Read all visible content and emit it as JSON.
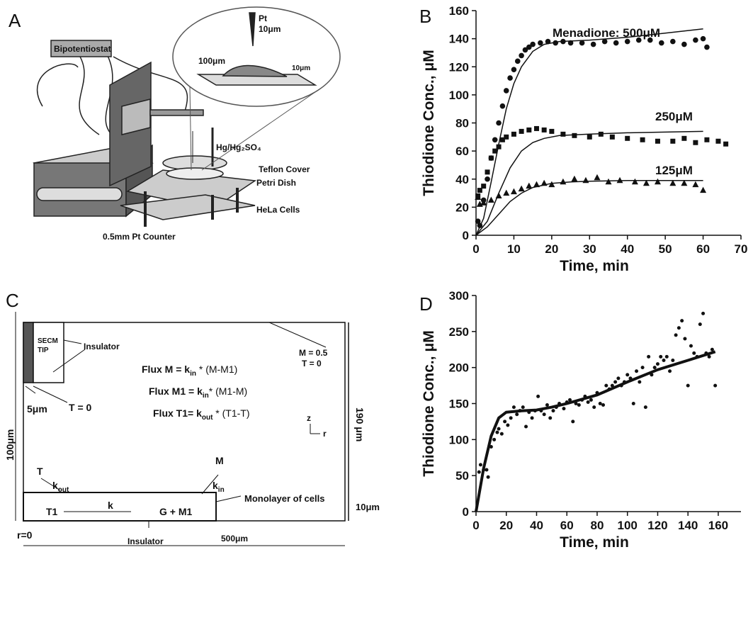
{
  "panel_labels": [
    "A",
    "B",
    "C",
    "D"
  ],
  "diagram_a": {
    "bipotentiostat": "Bipotentiostat",
    "tip": "Pt",
    "tip_size": "10μm",
    "gap": "100μm",
    "cell_height": "10μm",
    "reference": "Hg/Hg₂SO₄",
    "cover": "Teflon Cover",
    "dish": "Petri Dish",
    "cells": "HeLa Cells",
    "counter": "0.5mm Pt  Counter"
  },
  "diagram_c": {
    "tip": "SECM",
    "tip2": "TIP",
    "tip_insulator": "Insulator",
    "boundary_m": "M = 0.5",
    "boundary_t": "T = 0",
    "tip_radius": "5μm",
    "tip_t": "T = 0",
    "height": "100μm",
    "total_height": "190 μm",
    "axis_z": "z",
    "axis_r": "r",
    "equations": [
      {
        "lhs": "Flux M = k",
        "sub": "in",
        "rhs": " * (M-M1)"
      },
      {
        "lhs": "Flux M1 = k",
        "sub": "in",
        "rhs": "* (M1-M)"
      },
      {
        "lhs": "Flux T1= k",
        "sub": "out",
        "rhs": " * (T1-T)"
      }
    ],
    "species_t": "T",
    "k_out": "k",
    "k_out_sub": "out",
    "species_m": "M",
    "k_in": "k",
    "k_in_sub": "in",
    "t1": "T1",
    "k": "k",
    "reaction": "G + M1",
    "monolayer": "Monolayer of cells",
    "layer": "10μm",
    "origin": "r=0",
    "bottom_insulator": "Insulator",
    "width": "500μm"
  },
  "chart_data": [
    {
      "type": "scatter",
      "xlabel": "Time,  min",
      "ylabel": "Thiodione Conc., μM",
      "xlim": [
        0,
        70
      ],
      "xticks": [
        0,
        10,
        20,
        30,
        40,
        50,
        60,
        70
      ],
      "ylim": [
        0,
        160
      ],
      "yticks": [
        0,
        20,
        40,
        60,
        80,
        100,
        120,
        140,
        160
      ],
      "annotations": [
        "Menadione: 500μM",
        "250μM",
        "125μM"
      ],
      "series": [
        {
          "mode": "markers",
          "marker": "circle",
          "color": "#111111",
          "x": [
            0.5,
            1,
            2,
            3,
            4,
            5,
            6,
            7,
            8,
            9,
            10,
            11,
            12,
            13,
            14,
            15,
            17,
            19,
            21,
            23,
            25,
            28,
            31,
            34,
            37,
            40,
            43,
            46,
            49,
            52,
            55,
            58,
            60,
            61
          ],
          "values": [
            10,
            7,
            25,
            40,
            55,
            68,
            80,
            92,
            103,
            112,
            118,
            124,
            128,
            132,
            134,
            136,
            137,
            138,
            137,
            138,
            137,
            137,
            136,
            138,
            137,
            138,
            139,
            139,
            137,
            138,
            136,
            139,
            140,
            134
          ]
        },
        {
          "mode": "markers",
          "marker": "square",
          "color": "#111111",
          "x": [
            0.5,
            1,
            2,
            3,
            4,
            5,
            6,
            7,
            8,
            10,
            12,
            14,
            16,
            18,
            20,
            23,
            26,
            30,
            33,
            36,
            40,
            44,
            48,
            52,
            55,
            58,
            61,
            64,
            66
          ],
          "values": [
            28,
            32,
            35,
            45,
            55,
            60,
            63,
            68,
            70,
            72,
            74,
            75,
            76,
            75,
            74,
            72,
            71,
            70,
            72,
            70,
            69,
            68,
            67,
            67,
            69,
            66,
            68,
            67,
            65
          ]
        },
        {
          "mode": "markers",
          "marker": "triangle",
          "color": "#111111",
          "x": [
            0.5,
            1,
            2,
            4,
            6,
            8,
            10,
            12,
            14,
            16,
            18,
            20,
            23,
            26,
            29,
            32,
            35,
            38,
            42,
            45,
            48,
            52,
            55,
            58,
            60
          ],
          "values": [
            27,
            22,
            23,
            25,
            28,
            30,
            31,
            33,
            35,
            36,
            37,
            36,
            38,
            40,
            39,
            41,
            38,
            39,
            38,
            37,
            38,
            37,
            37,
            36,
            32
          ]
        },
        {
          "mode": "line",
          "color": "#111111",
          "x": [
            0,
            2,
            4,
            6,
            8,
            10,
            12,
            15,
            18,
            22,
            30,
            40,
            50,
            60
          ],
          "values": [
            0,
            12,
            38,
            65,
            90,
            108,
            120,
            131,
            136,
            138,
            139,
            141,
            144,
            147
          ]
        },
        {
          "mode": "line",
          "color": "#111111",
          "x": [
            0,
            3,
            6,
            9,
            12,
            15,
            18,
            22,
            30,
            40,
            50,
            60
          ],
          "values": [
            0,
            10,
            30,
            48,
            60,
            66,
            69,
            71,
            72,
            73,
            73.5,
            74
          ]
        },
        {
          "mode": "line",
          "color": "#111111",
          "x": [
            0,
            3,
            6,
            9,
            12,
            15,
            20,
            25,
            30,
            40,
            60
          ],
          "values": [
            0,
            6,
            15,
            24,
            30,
            34,
            37,
            38,
            38.5,
            39,
            39
          ]
        }
      ]
    },
    {
      "type": "scatter",
      "xlabel": "Time, min",
      "ylabel": "Thiodione Conc., μM",
      "xlim": [
        0,
        175
      ],
      "xticks": [
        0,
        20,
        40,
        60,
        80,
        100,
        120,
        140,
        160
      ],
      "ylim": [
        0,
        300
      ],
      "yticks": [
        0,
        50,
        100,
        150,
        200,
        250,
        300
      ],
      "annotations": [],
      "series": [
        {
          "mode": "markers",
          "marker": "dot",
          "color": "#111111",
          "x": [
            2,
            3,
            5,
            7,
            8,
            10,
            12,
            14,
            15,
            17,
            19,
            21,
            23,
            25,
            27,
            29,
            31,
            33,
            35,
            37,
            39,
            41,
            43,
            45,
            47,
            49,
            51,
            53,
            55,
            58,
            60,
            62,
            64,
            66,
            68,
            70,
            72,
            74,
            76,
            78,
            80,
            82,
            84,
            86,
            88,
            90,
            92,
            94,
            96,
            98,
            100,
            102,
            104,
            106,
            108,
            110,
            112,
            114,
            116,
            118,
            120,
            122,
            124,
            126,
            128,
            130,
            132,
            134,
            136,
            138,
            140,
            142,
            144,
            146,
            148,
            150,
            152,
            154,
            156,
            158
          ],
          "values": [
            55,
            65,
            58,
            58,
            48,
            90,
            100,
            110,
            115,
            108,
            125,
            120,
            130,
            145,
            135,
            140,
            145,
            118,
            138,
            130,
            140,
            160,
            140,
            135,
            148,
            130,
            140,
            145,
            150,
            143,
            152,
            155,
            125,
            150,
            148,
            155,
            160,
            152,
            155,
            145,
            165,
            150,
            148,
            175,
            170,
            175,
            180,
            185,
            175,
            180,
            190,
            185,
            150,
            195,
            180,
            200,
            145,
            215,
            190,
            200,
            205,
            215,
            210,
            215,
            195,
            210,
            245,
            255,
            265,
            240,
            175,
            230,
            220,
            215,
            260,
            275,
            220,
            215,
            225,
            175
          ]
        },
        {
          "mode": "line",
          "width": 4,
          "color": "#111111",
          "x": [
            0,
            5,
            10,
            15,
            20,
            30,
            40,
            50,
            60,
            80,
            100,
            120,
            140,
            158
          ],
          "values": [
            0,
            60,
            105,
            130,
            138,
            140,
            141,
            145,
            150,
            162,
            180,
            197,
            210,
            222
          ]
        }
      ]
    }
  ]
}
